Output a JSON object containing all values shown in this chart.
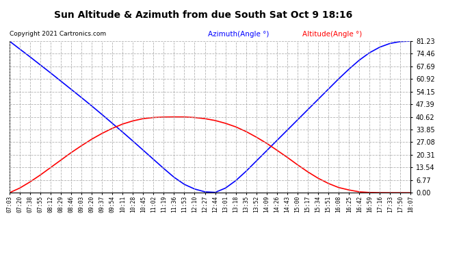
{
  "title": "Sun Altitude & Azimuth from due South Sat Oct 9 18:16",
  "copyright": "Copyright 2021 Cartronics.com",
  "legend_azimuth": "Azimuth(Angle °)",
  "legend_altitude": "Altitude(Angle °)",
  "yticks": [
    0.0,
    6.77,
    13.54,
    20.31,
    27.08,
    33.85,
    40.62,
    47.39,
    54.15,
    60.92,
    67.69,
    74.46,
    81.23
  ],
  "ymax": 81.23,
  "ymin": 0.0,
  "background_color": "#ffffff",
  "grid_color": "#aaaaaa",
  "azimuth_color": "blue",
  "altitude_color": "red",
  "title_color": "black",
  "copyright_color": "black",
  "x_labels": [
    "07:03",
    "07:20",
    "07:38",
    "07:55",
    "08:12",
    "08:29",
    "08:46",
    "09:03",
    "09:20",
    "09:37",
    "09:54",
    "10:11",
    "10:28",
    "10:45",
    "11:02",
    "11:19",
    "11:36",
    "11:53",
    "12:10",
    "12:27",
    "12:44",
    "13:01",
    "13:18",
    "13:35",
    "13:52",
    "14:09",
    "14:26",
    "14:43",
    "15:00",
    "15:17",
    "15:34",
    "15:51",
    "16:08",
    "16:25",
    "16:42",
    "16:59",
    "17:16",
    "17:33",
    "17:50",
    "18:07"
  ],
  "azimuth_values": [
    81.23,
    77.0,
    72.8,
    68.5,
    64.2,
    59.8,
    55.4,
    51.0,
    46.5,
    41.9,
    37.2,
    32.5,
    27.7,
    22.8,
    17.9,
    13.0,
    8.3,
    4.5,
    2.0,
    0.5,
    0.2,
    2.5,
    6.5,
    11.5,
    17.0,
    22.5,
    28.0,
    33.5,
    39.0,
    44.5,
    50.0,
    55.5,
    61.0,
    66.2,
    71.0,
    75.0,
    78.0,
    80.0,
    81.0,
    81.23
  ],
  "altitude_values": [
    0.0,
    2.5,
    5.8,
    9.5,
    13.5,
    17.5,
    21.5,
    25.2,
    28.7,
    31.8,
    34.5,
    36.8,
    38.5,
    39.7,
    40.3,
    40.55,
    40.62,
    40.6,
    40.3,
    39.7,
    38.7,
    37.2,
    35.3,
    32.8,
    29.8,
    26.5,
    22.8,
    19.0,
    15.0,
    11.2,
    7.8,
    5.0,
    2.8,
    1.5,
    0.5,
    0.15,
    0.05,
    0.02,
    0.01,
    0.0
  ]
}
